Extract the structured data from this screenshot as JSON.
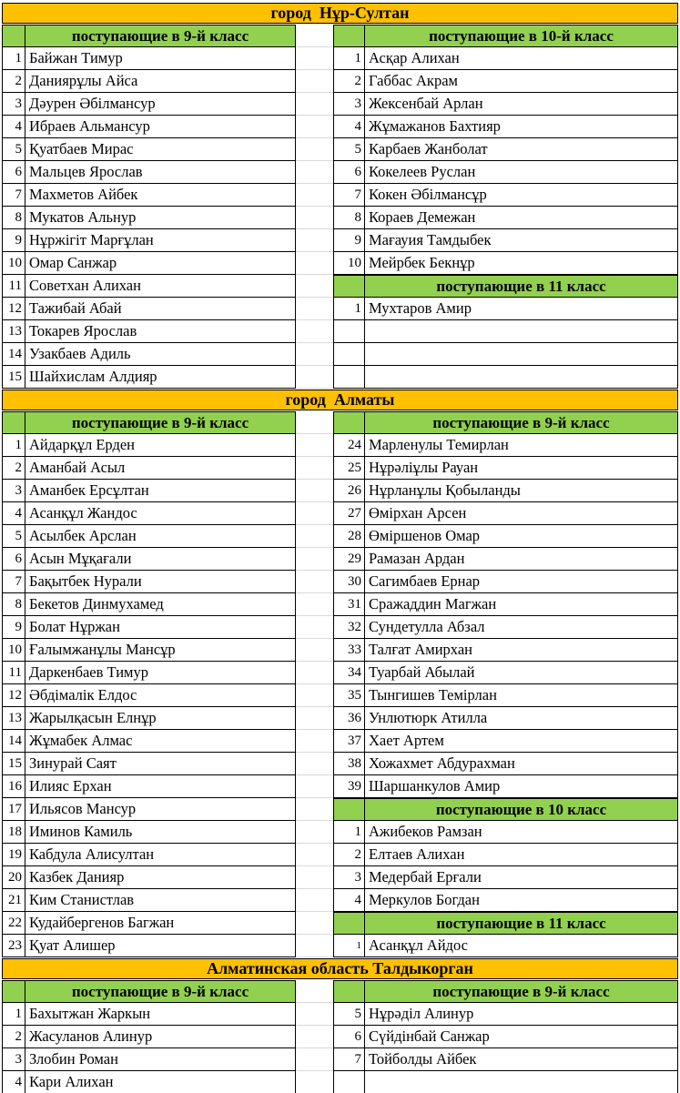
{
  "colors": {
    "city_bg": "#FFC000",
    "header_bg": "#92D050",
    "comment_triangle": "#1F7244",
    "table_border": "#000000",
    "gutter_gridline": "#D9D9D9"
  },
  "sections": [
    {
      "city": "город  Нұр-Султан",
      "left": {
        "rows": [
          {
            "type": "header",
            "header": "поступающие в 9-й класс"
          },
          {
            "type": "data",
            "n": "1",
            "name": "Байжан Тимур"
          },
          {
            "type": "data",
            "n": "2",
            "name": "Даниярұлы Айса"
          },
          {
            "type": "data",
            "n": "3",
            "name": "Дәурен Әбілмансур"
          },
          {
            "type": "data",
            "n": "4",
            "name": "Ибраев Альмансур"
          },
          {
            "type": "data",
            "n": "5",
            "name": "Қуатбаев Мирас"
          },
          {
            "type": "data",
            "n": "6",
            "name": "Мальцев Ярослав"
          },
          {
            "type": "data",
            "n": "7",
            "name": "Махметов Айбек"
          },
          {
            "type": "data",
            "n": "8",
            "name": "Мукатов Альнур"
          },
          {
            "type": "data",
            "n": "9",
            "name": "Нұржігіт Марғұлан"
          },
          {
            "type": "data",
            "n": "10",
            "name": "Омар Санжар"
          },
          {
            "type": "data",
            "n": "11",
            "name": "Советхан Алихан"
          },
          {
            "type": "data",
            "n": "12",
            "name": "Тажибай Абай"
          },
          {
            "type": "data",
            "n": "13",
            "name": "Токарев Ярослав"
          },
          {
            "type": "data",
            "n": "14",
            "name": "Узакбаев Адиль"
          },
          {
            "type": "data",
            "n": "15",
            "name": "Шайхислам Алдияр"
          }
        ]
      },
      "right": {
        "rows": [
          {
            "type": "header",
            "header": "поступающие в 10-й класс"
          },
          {
            "type": "data",
            "n": "1",
            "name": "Асқар Алихан"
          },
          {
            "type": "data",
            "n": "2",
            "name": "Габбас Акрам"
          },
          {
            "type": "data",
            "n": "3",
            "name": "Жексенбай Арлан"
          },
          {
            "type": "data",
            "n": "4",
            "name": "Жұмажанов Бахтияр"
          },
          {
            "type": "data",
            "n": "5",
            "name": "Карбаев Жанболат"
          },
          {
            "type": "data",
            "n": "6",
            "name": "Кокелеев Руслан"
          },
          {
            "type": "data",
            "n": "7",
            "name": "Кокен Әбілмансұр"
          },
          {
            "type": "data",
            "n": "8",
            "name": "Кораев Демежан"
          },
          {
            "type": "data",
            "n": "9",
            "name": "Мағауия Тамдыбек"
          },
          {
            "type": "data",
            "n": "10",
            "name": "Мейрбек Бекнұр"
          },
          {
            "type": "header",
            "header": "поступающие в 11 класс"
          },
          {
            "type": "data",
            "n": "1",
            "name": "Мухтаров Амир"
          },
          {
            "type": "empty"
          },
          {
            "type": "empty"
          },
          {
            "type": "empty"
          }
        ]
      }
    },
    {
      "city": "город  Алматы",
      "left": {
        "rows": [
          {
            "type": "header",
            "header": "поступающие в 9-й класс"
          },
          {
            "type": "data",
            "n": "1",
            "name": "Айдарқұл Ерден"
          },
          {
            "type": "data",
            "n": "2",
            "name": "Аманбай Асыл"
          },
          {
            "type": "data",
            "n": "3",
            "name": "Аманбек Ерсұлтан"
          },
          {
            "type": "data",
            "n": "4",
            "name": "Асанқұл Жандос"
          },
          {
            "type": "data",
            "n": "5",
            "name": "Асылбек Арслан"
          },
          {
            "type": "data",
            "n": "6",
            "name": "Асын Мұқағали"
          },
          {
            "type": "data",
            "n": "7",
            "name": "Бақытбек Нурали"
          },
          {
            "type": "data",
            "n": "8",
            "name": "Бекетов Динмухамед"
          },
          {
            "type": "data",
            "n": "9",
            "name": "Болат Нұржан"
          },
          {
            "type": "data",
            "n": "10",
            "name": "Ғалымжанұлы Мансұр"
          },
          {
            "type": "data",
            "n": "11",
            "name": "Даркенбаев Тимур"
          },
          {
            "type": "data",
            "n": "12",
            "name": "Әбдімалік Елдос"
          },
          {
            "type": "data",
            "n": "13",
            "name": "Жарылқасын Елнұр"
          },
          {
            "type": "data",
            "n": "14",
            "name": "Жұмабек Алмас"
          },
          {
            "type": "data",
            "n": "15",
            "name": "Зинурай Саят"
          },
          {
            "type": "data",
            "n": "16",
            "name": "Илияс Ерхан"
          },
          {
            "type": "data",
            "n": "17",
            "name": "Ильясов Мансур"
          },
          {
            "type": "data",
            "n": "18",
            "name": "Иминов Камиль"
          },
          {
            "type": "data",
            "n": "19",
            "name": "Кабдула Алисултан"
          },
          {
            "type": "data",
            "n": "20",
            "name": "Казбек Данияр"
          },
          {
            "type": "data",
            "n": "21",
            "name": "Ким Станистлав"
          },
          {
            "type": "data",
            "n": "22",
            "name": "Кудайбергенов Багжан"
          },
          {
            "type": "data",
            "n": "23",
            "name": "Қуат Алишер"
          }
        ]
      },
      "right": {
        "rows": [
          {
            "type": "header",
            "header": "поступающие в 9-й класс"
          },
          {
            "type": "data",
            "n": "24",
            "name": "Марленулы Темирлан"
          },
          {
            "type": "data",
            "n": "25",
            "name": "Нұрәліұлы Рауан"
          },
          {
            "type": "data",
            "n": "26",
            "name": "Нұрланұлы Қобыланды"
          },
          {
            "type": "data",
            "n": "27",
            "name": "Өмірхан Арсен"
          },
          {
            "type": "data",
            "n": "28",
            "name": "Өміршенов Омар"
          },
          {
            "type": "data",
            "n": "29",
            "name": "Рамазан Ардан"
          },
          {
            "type": "data",
            "n": "30",
            "name": "Сагимбаев Ернар"
          },
          {
            "type": "data",
            "n": "31",
            "name": "Сражаддин Магжан"
          },
          {
            "type": "data",
            "n": "32",
            "name": "Сундетулла Абзал"
          },
          {
            "type": "data",
            "n": "33",
            "name": "Талғат Амирхан"
          },
          {
            "type": "data",
            "n": "34",
            "name": "Туарбай Абылай"
          },
          {
            "type": "data",
            "n": "35",
            "name": "Тынгишев Темірлан"
          },
          {
            "type": "data",
            "n": "36",
            "name": "Унлютюрк Атилла"
          },
          {
            "type": "data",
            "n": "37",
            "name": "Хает Артем"
          },
          {
            "type": "data",
            "n": "38",
            "name": "Хожахмет Абдурахман"
          },
          {
            "type": "data",
            "n": "39",
            "name": "Шаршанкулов Амир"
          },
          {
            "type": "header",
            "header": "поступающие в 10 класс"
          },
          {
            "type": "data",
            "n": "1",
            "name": "Ажибеков Рамзан"
          },
          {
            "type": "data",
            "n": "2",
            "name": "Елтаев Алихан"
          },
          {
            "type": "data",
            "n": "3",
            "name": "Медербай Ерғали"
          },
          {
            "type": "data",
            "n": "4",
            "name": "Меркулов Богдан"
          },
          {
            "type": "header",
            "header": "поступающие в 11 класс"
          },
          {
            "type": "data",
            "n": "1",
            "name": "Асанқұл Айдос",
            "small": true
          }
        ]
      }
    },
    {
      "city": "Алматинская область Талдыкорган",
      "left": {
        "rows": [
          {
            "type": "header",
            "header": "поступающие в 9-й класс"
          },
          {
            "type": "data",
            "n": "1",
            "name": "Бахытжан Жаркын"
          },
          {
            "type": "data",
            "n": "2",
            "name": "Жасуланов Алинур"
          },
          {
            "type": "data",
            "n": "3",
            "name": "Злобин Роман"
          },
          {
            "type": "data",
            "n": "4",
            "name": "Кари Алихан"
          }
        ]
      },
      "right": {
        "rows": [
          {
            "type": "header",
            "header": "поступающие в 9-й класс"
          },
          {
            "type": "data",
            "n": "5",
            "name": "Нұрәділ Алинур"
          },
          {
            "type": "data",
            "n": "6",
            "name": "Сүйдінбай Санжар"
          },
          {
            "type": "data",
            "n": "7",
            "name": "Тойболды Айбек"
          },
          {
            "type": "empty"
          }
        ]
      }
    }
  ]
}
